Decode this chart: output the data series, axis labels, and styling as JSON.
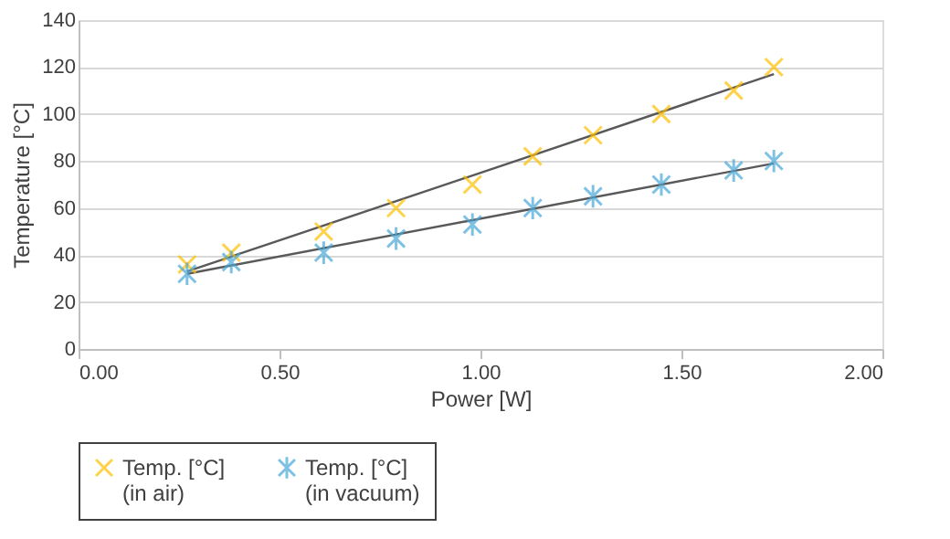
{
  "chart_data": {
    "type": "scatter",
    "xlabel": "Power [W]",
    "ylabel": "Temperature [°C]",
    "xlim": [
      0,
      2
    ],
    "xticks": [
      {
        "value": 0,
        "label": "0.00"
      },
      {
        "value": 0.5,
        "label": "0.50"
      },
      {
        "value": 1,
        "label": "1.00"
      },
      {
        "value": 1.5,
        "label": "1.50"
      },
      {
        "value": 2,
        "label": "2.00"
      }
    ],
    "ylim": [
      0,
      140
    ],
    "yticks": [
      0,
      20,
      40,
      60,
      80,
      100,
      120,
      140
    ],
    "grid": "y",
    "legend": "bottom",
    "series": [
      {
        "name": "Temp. [°C] (in  air)",
        "color": "#ffc000",
        "marker": "cross",
        "x": [
          0.27,
          0.38,
          0.61,
          0.79,
          0.98,
          1.13,
          1.28,
          1.45,
          1.63,
          1.73
        ],
        "values": [
          36,
          41,
          50,
          60,
          70,
          82,
          91,
          100,
          110,
          120
        ]
      },
      {
        "name": "Temp. [°C] (in vacuum)",
        "color": "#4aa8d8",
        "marker": "cross",
        "x": [
          0.27,
          0.38,
          0.61,
          0.79,
          0.98,
          1.13,
          1.28,
          1.45,
          1.63,
          1.73
        ],
        "values": [
          32,
          37,
          41,
          47,
          53,
          60,
          65,
          70,
          76,
          80
        ]
      },
      {
        "type": "line",
        "color": "#595959",
        "x": [
          0.27,
          1.73
        ],
        "values": [
          33,
          117
        ]
      },
      {
        "type": "line",
        "color": "#595959",
        "x": [
          0.27,
          1.73
        ],
        "values": [
          32,
          79
        ]
      }
    ]
  }
}
